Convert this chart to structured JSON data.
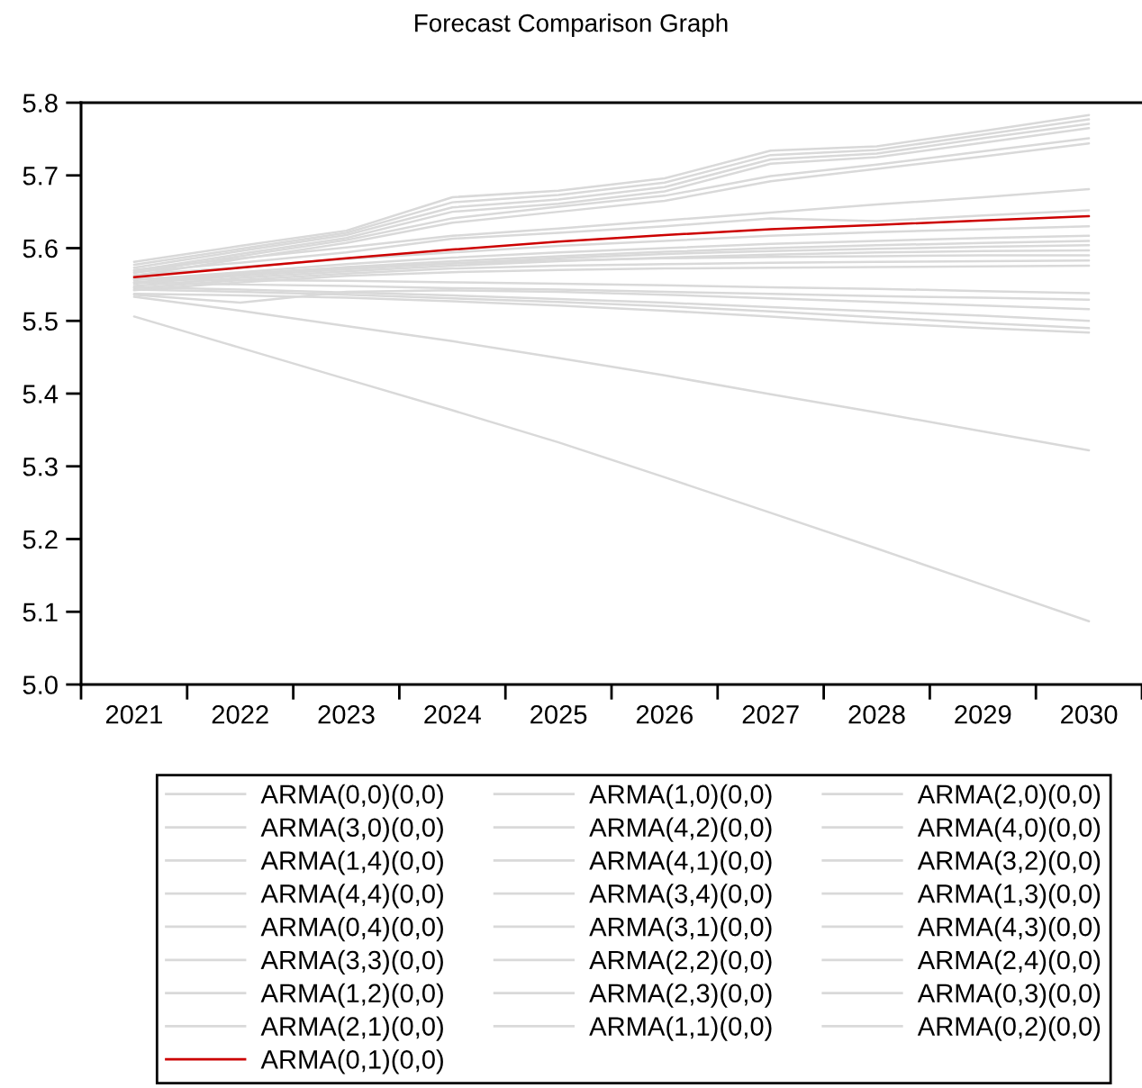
{
  "chart_data": {
    "type": "line",
    "title": "Forecast Comparison Graph",
    "categories": [
      "2021",
      "2022",
      "2023",
      "2024",
      "2025",
      "2026",
      "2027",
      "2028",
      "2029",
      "2030"
    ],
    "ylim": [
      5.0,
      5.8
    ],
    "yticks": [
      {
        "value": 5,
        "label": "5.0"
      },
      5.1,
      5.2,
      5.3,
      5.4,
      5.5,
      5.6,
      5.7,
      5.8
    ],
    "legend": "bottom",
    "series": [
      {
        "name": "ARMA(0,0)(0,0)",
        "color": "#d9d9d9",
        "values": [
          5.545,
          5.556,
          5.565,
          5.572,
          5.576,
          5.578,
          5.58,
          5.581,
          5.582,
          5.583
        ]
      },
      {
        "name": "ARMA(1,0)(0,0)",
        "color": "#d9d9d9",
        "values": [
          5.553,
          5.55,
          5.548,
          5.545,
          5.543,
          5.54,
          5.537,
          5.534,
          5.532,
          5.529
        ]
      },
      {
        "name": "ARMA(2,0)(0,0)",
        "color": "#d9d9d9",
        "values": [
          5.556,
          5.567,
          5.578,
          5.587,
          5.594,
          5.6,
          5.606,
          5.61,
          5.614,
          5.617
        ]
      },
      {
        "name": "ARMA(3,0)(0,0)",
        "color": "#d9d9d9",
        "values": [
          5.551,
          5.562,
          5.571,
          5.579,
          5.586,
          5.592,
          5.596,
          5.599,
          5.602,
          5.604
        ]
      },
      {
        "name": "ARMA(4,2)(0,0)",
        "color": "#d9d9d9",
        "values": [
          5.581,
          5.603,
          5.624,
          5.67,
          5.679,
          5.696,
          5.734,
          5.74,
          5.761,
          5.783
        ]
      },
      {
        "name": "ARMA(4,0)(0,0)",
        "color": "#d9d9d9",
        "values": [
          5.543,
          5.54,
          5.536,
          5.531,
          5.526,
          5.52,
          5.513,
          5.505,
          5.497,
          5.49
        ]
      },
      {
        "name": "ARMA(1,4)(0,0)",
        "color": "#d9d9d9",
        "values": [
          5.566,
          5.589,
          5.611,
          5.641,
          5.657,
          5.672,
          5.699,
          5.715,
          5.733,
          5.751
        ]
      },
      {
        "name": "ARMA(4,1)(0,0)",
        "color": "#d9d9d9",
        "values": [
          5.577,
          5.599,
          5.621,
          5.663,
          5.673,
          5.69,
          5.728,
          5.735,
          5.756,
          5.777
        ]
      },
      {
        "name": "ARMA(3,2)(0,0)",
        "color": "#d9d9d9",
        "values": [
          5.567,
          5.58,
          5.594,
          5.613,
          5.621,
          5.63,
          5.641,
          5.637,
          5.645,
          5.652
        ]
      },
      {
        "name": "ARMA(4,4)(0,0)",
        "color": "#d9d9d9",
        "values": [
          5.573,
          5.596,
          5.618,
          5.656,
          5.667,
          5.684,
          5.722,
          5.73,
          5.751,
          5.771
        ]
      },
      {
        "name": "ARMA(3,4)(0,0)",
        "color": "#d9d9d9",
        "values": [
          5.569,
          5.592,
          5.614,
          5.65,
          5.661,
          5.678,
          5.716,
          5.725,
          5.745,
          5.765
        ]
      },
      {
        "name": "ARMA(1,3)(0,0)",
        "color": "#d9d9d9",
        "values": [
          5.562,
          5.585,
          5.607,
          5.635,
          5.65,
          5.665,
          5.692,
          5.709,
          5.726,
          5.744
        ]
      },
      {
        "name": "ARMA(0,4)(0,0)",
        "color": "#d9d9d9",
        "values": [
          5.542,
          5.553,
          5.562,
          5.567,
          5.57,
          5.572,
          5.573,
          5.574,
          5.575,
          5.576
        ]
      },
      {
        "name": "ARMA(3,1)(0,0)",
        "color": "#d9d9d9",
        "values": [
          5.537,
          5.535,
          5.532,
          5.527,
          5.521,
          5.514,
          5.506,
          5.497,
          5.49,
          5.484
        ]
      },
      {
        "name": "ARMA(4,3)(0,0)",
        "color": "#d9d9d9",
        "values": [
          5.553,
          5.564,
          5.574,
          5.582,
          5.589,
          5.595,
          5.6,
          5.604,
          5.607,
          5.61
        ]
      },
      {
        "name": "ARMA(3,3)(0,0)",
        "color": "#d9d9d9",
        "values": [
          5.548,
          5.559,
          5.568,
          5.576,
          5.582,
          5.587,
          5.591,
          5.594,
          5.596,
          5.597
        ]
      },
      {
        "name": "ARMA(2,2)(0,0)",
        "color": "#d9d9d9",
        "values": [
          5.536,
          5.525,
          5.54,
          5.542,
          5.54,
          5.536,
          5.531,
          5.526,
          5.521,
          5.516
        ]
      },
      {
        "name": "ARMA(2,4)(0,0)",
        "color": "#d9d9d9",
        "values": [
          5.546,
          5.543,
          5.539,
          5.535,
          5.53,
          5.525,
          5.519,
          5.513,
          5.507,
          5.5
        ]
      },
      {
        "name": "ARMA(1,2)(0,0)",
        "color": "#d9d9d9",
        "values": [
          5.57,
          5.586,
          5.601,
          5.617,
          5.627,
          5.638,
          5.649,
          5.66,
          5.67,
          5.681
        ]
      },
      {
        "name": "ARMA(2,3)(0,0)",
        "color": "#d9d9d9",
        "values": [
          5.558,
          5.556,
          5.555,
          5.553,
          5.551,
          5.549,
          5.546,
          5.544,
          5.541,
          5.538
        ]
      },
      {
        "name": "ARMA(0,3)(0,0)",
        "color": "#d9d9d9",
        "values": [
          5.563,
          5.574,
          5.585,
          5.594,
          5.603,
          5.61,
          5.617,
          5.622,
          5.626,
          5.63
        ]
      },
      {
        "name": "ARMA(2,1)(0,0)",
        "color": "#d9d9d9",
        "values": [
          5.533,
          5.514,
          5.493,
          5.472,
          5.449,
          5.425,
          5.399,
          5.374,
          5.348,
          5.322
        ]
      },
      {
        "name": "ARMA(1,1)(0,0)",
        "color": "#d9d9d9",
        "values": [
          5.557,
          5.565,
          5.573,
          5.579,
          5.583,
          5.586,
          5.588,
          5.589,
          5.59,
          5.59
        ]
      },
      {
        "name": "ARMA(0,2)(0,0)",
        "color": "#d9d9d9",
        "values": [
          5.506,
          5.463,
          5.42,
          5.377,
          5.333,
          5.285,
          5.236,
          5.187,
          5.137,
          5.087
        ]
      },
      {
        "name": "ARMA(0,1)(0,0)",
        "color": "#cc0000",
        "values": [
          5.56,
          5.573,
          5.586,
          5.598,
          5.609,
          5.618,
          5.626,
          5.632,
          5.638,
          5.644
        ]
      }
    ]
  }
}
